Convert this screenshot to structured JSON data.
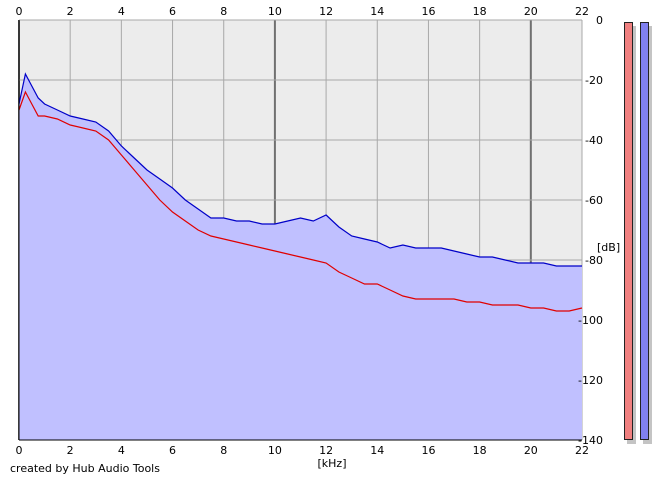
{
  "app": {
    "credit": "created by Hub Audio Tools"
  },
  "chart_data": {
    "type": "line",
    "title": "",
    "xlabel": "[kHz]",
    "ylabel": "[dB]",
    "xlim": [
      0,
      22
    ],
    "ylim": [
      -140,
      0
    ],
    "x_ticks": [
      "0",
      "2",
      "4",
      "6",
      "8",
      "10",
      "12",
      "14",
      "16",
      "18",
      "20",
      "22"
    ],
    "y_ticks": [
      "0",
      "-20",
      "-40",
      "-60",
      "-80",
      "-100",
      "-120",
      "-140"
    ],
    "grid": true,
    "background_fill": "#c0c0ff",
    "series": [
      {
        "color": "#0000c8",
        "x": [
          0.0,
          0.25,
          0.5,
          0.75,
          1.0,
          1.5,
          2.0,
          2.5,
          3.0,
          3.5,
          4.0,
          4.5,
          5.0,
          5.5,
          6.0,
          6.5,
          7.0,
          7.5,
          8.0,
          8.5,
          9.0,
          9.5,
          10.0,
          10.5,
          11.0,
          11.5,
          12.0,
          12.5,
          13.0,
          13.5,
          14.0,
          14.5,
          15.0,
          15.5,
          16.0,
          16.5,
          17.0,
          17.5,
          18.0,
          18.5,
          19.0,
          19.5,
          20.0,
          20.5,
          21.0,
          21.5,
          22.0
        ],
        "y": [
          -28,
          -18,
          -22,
          -26,
          -28,
          -30,
          -32,
          -33,
          -34,
          -37,
          -42,
          -46,
          -50,
          -53,
          -56,
          -60,
          -63,
          -66,
          -66,
          -67,
          -67,
          -68,
          -68,
          -67,
          -66,
          -67,
          -65,
          -69,
          -72,
          -73,
          -74,
          -76,
          -75,
          -76,
          -76,
          -76,
          -77,
          -78,
          -79,
          -79,
          -80,
          -81,
          -81,
          -81,
          -82,
          -82,
          -82
        ]
      },
      {
        "color": "#e00000",
        "x": [
          0.0,
          0.25,
          0.5,
          0.75,
          1.0,
          1.5,
          2.0,
          2.5,
          3.0,
          3.5,
          4.0,
          4.5,
          5.0,
          5.5,
          6.0,
          6.5,
          7.0,
          7.5,
          8.0,
          8.5,
          9.0,
          9.5,
          10.0,
          10.5,
          11.0,
          11.5,
          12.0,
          12.5,
          13.0,
          13.5,
          14.0,
          14.5,
          15.0,
          15.5,
          16.0,
          16.5,
          17.0,
          17.5,
          18.0,
          18.5,
          19.0,
          19.5,
          20.0,
          20.5,
          21.0,
          21.5,
          22.0
        ],
        "y": [
          -30,
          -24,
          -28,
          -32,
          -32,
          -33,
          -35,
          -36,
          -37,
          -40,
          -45,
          -50,
          -55,
          -60,
          -64,
          -67,
          -70,
          -72,
          -73,
          -74,
          -75,
          -76,
          -77,
          -78,
          -79,
          -80,
          -81,
          -84,
          -86,
          -88,
          -88,
          -90,
          -92,
          -93,
          -93,
          -93,
          -93,
          -94,
          -94,
          -95,
          -95,
          -95,
          -96,
          -96,
          -97,
          -97,
          -96
        ]
      }
    ],
    "level_meters": [
      {
        "channel": "left",
        "color": "#f08080"
      },
      {
        "channel": "right",
        "color": "#8080f0"
      }
    ]
  }
}
